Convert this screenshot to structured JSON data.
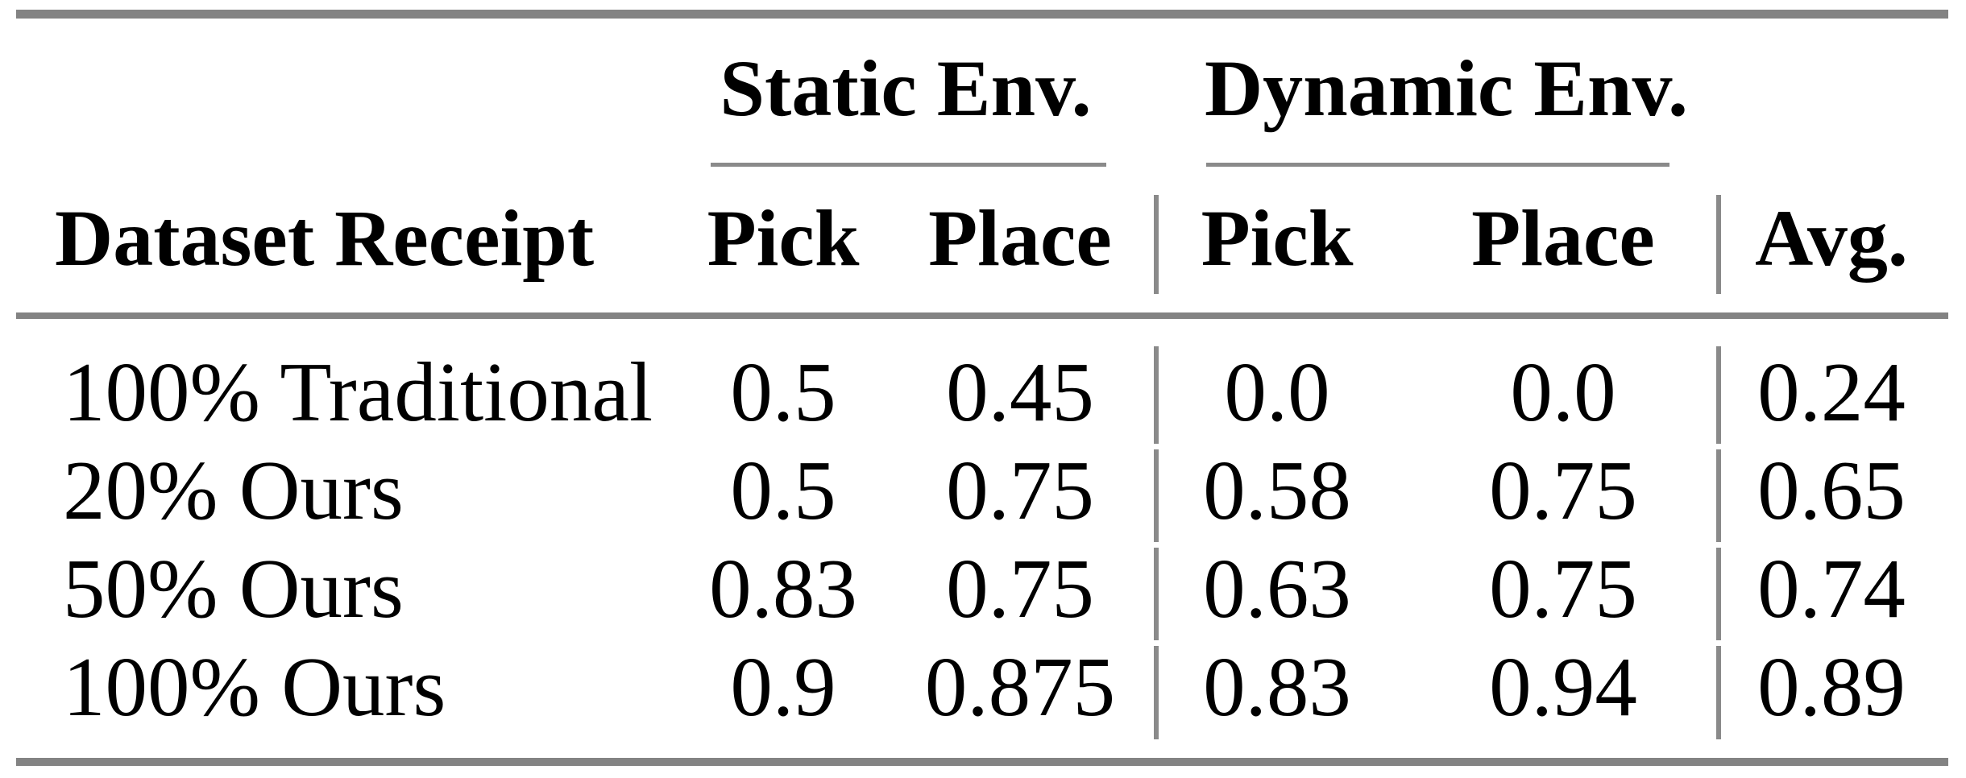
{
  "table": {
    "group_headers": [
      {
        "label": "Static Env."
      },
      {
        "label": "Dynamic Env."
      }
    ],
    "header": {
      "dataset": "Dataset Receipt",
      "static_pick": "Pick",
      "static_place": "Place",
      "dynamic_pick": "Pick",
      "dynamic_place": "Place",
      "avg": "Avg."
    },
    "rows": [
      {
        "label": "100% Traditional",
        "static_pick": "0.5",
        "static_place": "0.45",
        "dynamic_pick": "0.0",
        "dynamic_place": "0.0",
        "avg": "0.24"
      },
      {
        "label": "20% Ours",
        "static_pick": "0.5",
        "static_place": "0.75",
        "dynamic_pick": "0.58",
        "dynamic_place": "0.75",
        "avg": "0.65"
      },
      {
        "label": "50% Ours",
        "static_pick": "0.83",
        "static_place": "0.75",
        "dynamic_pick": "0.63",
        "dynamic_place": "0.75",
        "avg": "0.74"
      },
      {
        "label": "100% Ours",
        "static_pick": "0.9",
        "static_place": "0.875",
        "dynamic_pick": "0.83",
        "dynamic_place": "0.94",
        "avg": "0.89"
      }
    ],
    "colors": {
      "rule_gray": "#838383",
      "text": "#000000",
      "background": "#ffffff"
    }
  },
  "chart_data": {
    "type": "table",
    "columns": [
      "Dataset Receipt",
      "Static Env. Pick",
      "Static Env. Place",
      "Dynamic Env. Pick",
      "Dynamic Env. Place",
      "Avg."
    ],
    "rows": [
      [
        "100% Traditional",
        0.5,
        0.45,
        0.0,
        0.0,
        0.24
      ],
      [
        "20% Ours",
        0.5,
        0.75,
        0.58,
        0.75,
        0.65
      ],
      [
        "50% Ours",
        0.83,
        0.75,
        0.63,
        0.75,
        0.74
      ],
      [
        "100% Ours",
        0.9,
        0.875,
        0.83,
        0.94,
        0.89
      ]
    ]
  }
}
